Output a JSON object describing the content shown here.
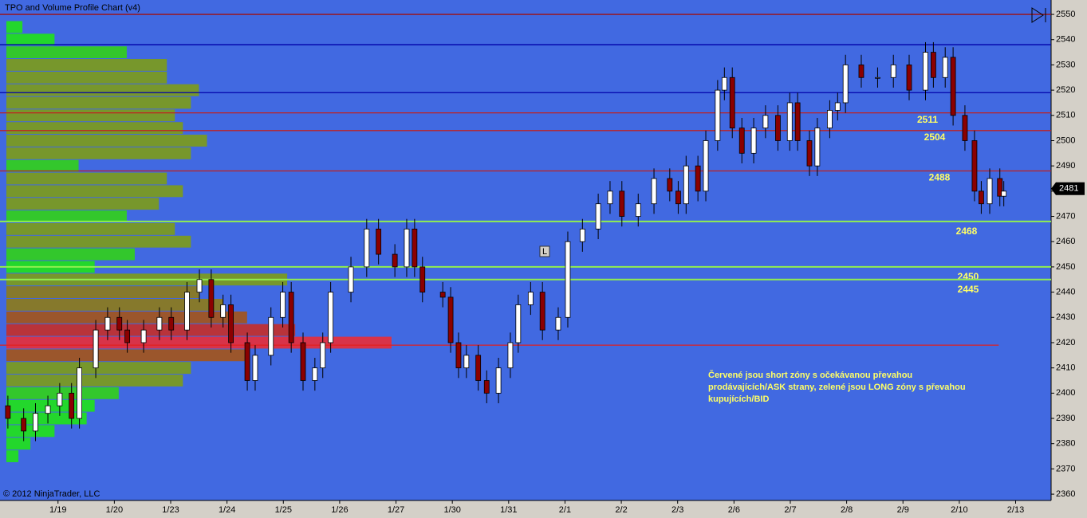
{
  "chart_data": {
    "type": "candlestick",
    "title": "TPO and Volume Profile Chart (v4)",
    "copyright": "© 2012 NinjaTrader, LLC",
    "annotation": [
      "Červené jsou short zóny s očekávanou převahou",
      "prodávajících/ASK strany, zelené jsou LONG zóny s převahou",
      "kupujících/BID"
    ],
    "marker": "L",
    "last_price": 2481,
    "background": "#4169e1",
    "up_color": "#ffffff",
    "down_color": "#8b0000",
    "ylim": [
      2357.5,
      2555.7
    ],
    "yticks": [
      2360,
      2370,
      2380,
      2390,
      2400,
      2410,
      2420,
      2430,
      2440,
      2450,
      2460,
      2470,
      2480,
      2490,
      2500,
      2510,
      2520,
      2530,
      2540,
      2550
    ],
    "xlim": [
      -0.03,
      18.63
    ],
    "xticks": [
      {
        "value": 1,
        "label": "1/19"
      },
      {
        "value": 2,
        "label": "1/20"
      },
      {
        "value": 3,
        "label": "1/23"
      },
      {
        "value": 4,
        "label": "1/24"
      },
      {
        "value": 5,
        "label": "1/25"
      },
      {
        "value": 6,
        "label": "1/26"
      },
      {
        "value": 7,
        "label": "1/27"
      },
      {
        "value": 8,
        "label": "1/30"
      },
      {
        "value": 9,
        "label": "1/31"
      },
      {
        "value": 10,
        "label": "2/1"
      },
      {
        "value": 11,
        "label": "2/2"
      },
      {
        "value": 12,
        "label": "2/3"
      },
      {
        "value": 13,
        "label": "2/6"
      },
      {
        "value": 14,
        "label": "2/7"
      },
      {
        "value": 15,
        "label": "2/8"
      },
      {
        "value": 16,
        "label": "2/9"
      },
      {
        "value": 17,
        "label": "2/10"
      },
      {
        "value": 18,
        "label": "2/13"
      }
    ],
    "x": [
      0.11,
      0.39,
      0.6,
      0.82,
      1.03,
      1.24,
      1.38,
      1.67,
      1.88,
      2.09,
      2.23,
      2.52,
      2.8,
      3.01,
      3.29,
      3.51,
      3.72,
      3.93,
      4.07,
      4.36,
      4.5,
      4.78,
      4.99,
      5.14,
      5.35,
      5.56,
      5.7,
      5.84,
      6.2,
      6.48,
      6.69,
      6.98,
      7.19,
      7.33,
      7.47,
      7.83,
      7.97,
      8.11,
      8.25,
      8.46,
      8.61,
      8.82,
      9.03,
      9.17,
      9.39,
      9.6,
      9.88,
      10.05,
      10.31,
      10.59,
      10.8,
      11.01,
      11.3,
      11.58,
      11.86,
      12.01,
      12.15,
      12.36,
      12.5,
      12.71,
      12.83,
      12.97,
      13.14,
      13.35,
      13.56,
      13.78,
      13.99,
      14.13,
      14.34,
      14.48,
      14.7,
      14.84,
      14.98,
      15.26,
      15.55,
      15.83,
      16.11,
      16.4,
      16.54,
      16.75,
      16.89,
      17.1,
      17.27,
      17.39,
      17.54,
      17.72,
      17.79
    ],
    "open": [
      2395,
      2390,
      2385,
      2392,
      2395,
      2400,
      2390,
      2410,
      2425,
      2430,
      2425,
      2420,
      2425,
      2430,
      2425,
      2440,
      2445,
      2430,
      2435,
      2420,
      2405,
      2415,
      2430,
      2440,
      2420,
      2405,
      2410,
      2420,
      2440,
      2450,
      2465,
      2455,
      2450,
      2465,
      2450,
      2440,
      2438,
      2420,
      2410,
      2415,
      2405,
      2400,
      2410,
      2420,
      2435,
      2440,
      2425,
      2430,
      2460,
      2465,
      2475,
      2480,
      2470,
      2475,
      2485,
      2480,
      2475,
      2490,
      2480,
      2500,
      2520,
      2525,
      2505,
      2495,
      2505,
      2510,
      2500,
      2515,
      2500,
      2490,
      2505,
      2512,
      2515,
      2530,
      2525,
      2525,
      2530,
      2520,
      2535,
      2525,
      2533,
      2510,
      2500,
      2480,
      2475,
      2485,
      2478
    ],
    "high": [
      2399,
      2394,
      2396,
      2399,
      2404,
      2404,
      2414,
      2429,
      2434,
      2434,
      2429,
      2429,
      2434,
      2434,
      2444,
      2449,
      2449,
      2439,
      2439,
      2424,
      2419,
      2434,
      2444,
      2444,
      2424,
      2414,
      2424,
      2444,
      2454,
      2469,
      2469,
      2459,
      2469,
      2469,
      2454,
      2444,
      2442,
      2424,
      2419,
      2419,
      2409,
      2414,
      2424,
      2439,
      2444,
      2444,
      2434,
      2464,
      2469,
      2479,
      2484,
      2484,
      2479,
      2489,
      2489,
      2484,
      2494,
      2494,
      2504,
      2524,
      2529,
      2529,
      2509,
      2509,
      2514,
      2514,
      2519,
      2519,
      2504,
      2509,
      2516,
      2519,
      2534,
      2534,
      2529,
      2534,
      2534,
      2539,
      2539,
      2537,
      2537,
      2514,
      2504,
      2484,
      2489,
      2489,
      2484
    ],
    "low": [
      2386,
      2381,
      2381,
      2388,
      2391,
      2386,
      2386,
      2406,
      2421,
      2421,
      2416,
      2416,
      2421,
      2421,
      2421,
      2436,
      2426,
      2426,
      2416,
      2401,
      2401,
      2411,
      2426,
      2416,
      2401,
      2401,
      2406,
      2416,
      2436,
      2446,
      2451,
      2446,
      2446,
      2446,
      2436,
      2434,
      2416,
      2406,
      2406,
      2401,
      2396,
      2396,
      2406,
      2416,
      2431,
      2421,
      2421,
      2426,
      2456,
      2461,
      2471,
      2466,
      2466,
      2471,
      2476,
      2471,
      2471,
      2476,
      2476,
      2496,
      2516,
      2501,
      2491,
      2491,
      2501,
      2496,
      2496,
      2496,
      2486,
      2486,
      2501,
      2508,
      2511,
      2521,
      2521,
      2521,
      2516,
      2516,
      2521,
      2521,
      2506,
      2496,
      2476,
      2471,
      2471,
      2474,
      2474
    ],
    "close": [
      2390,
      2385,
      2392,
      2395,
      2400,
      2390,
      2410,
      2425,
      2430,
      2425,
      2420,
      2425,
      2430,
      2425,
      2440,
      2445,
      2430,
      2435,
      2420,
      2405,
      2415,
      2430,
      2440,
      2420,
      2405,
      2410,
      2420,
      2440,
      2450,
      2465,
      2455,
      2450,
      2465,
      2450,
      2440,
      2438,
      2420,
      2410,
      2415,
      2405,
      2400,
      2410,
      2420,
      2435,
      2440,
      2425,
      2430,
      2460,
      2465,
      2475,
      2480,
      2470,
      2475,
      2485,
      2480,
      2475,
      2490,
      2480,
      2500,
      2520,
      2525,
      2505,
      2495,
      2505,
      2510,
      2500,
      2515,
      2500,
      2490,
      2505,
      2512,
      2515,
      2530,
      2525,
      2525,
      2530,
      2520,
      2535,
      2525,
      2533,
      2510,
      2500,
      2480,
      2475,
      2485,
      2478,
      2480
    ],
    "profile": {
      "prices": [
        2545,
        2540,
        2535,
        2530,
        2525,
        2520,
        2515,
        2510,
        2505,
        2500,
        2495,
        2490,
        2485,
        2480,
        2475,
        2470,
        2465,
        2460,
        2455,
        2450,
        2445,
        2440,
        2435,
        2430,
        2425,
        2420,
        2415,
        2410,
        2405,
        2400,
        2395,
        2390,
        2385,
        2380,
        2375
      ],
      "volumes": [
        20,
        60,
        150,
        200,
        200,
        240,
        230,
        210,
        220,
        250,
        230,
        90,
        200,
        220,
        190,
        150,
        210,
        230,
        160,
        110,
        350,
        240,
        270,
        300,
        360,
        480,
        300,
        230,
        220,
        140,
        110,
        100,
        60,
        30,
        15
      ],
      "colors": [
        "#22dd22",
        "#22dd22",
        "#33cc22",
        "#7a9a22",
        "#7a9a22",
        "#7a9a22",
        "#7a9a22",
        "#7a9a22",
        "#7a9a22",
        "#7a9a22",
        "#7a9a22",
        "#33cc22",
        "#7a9a22",
        "#7a9a22",
        "#7a9a22",
        "#33cc22",
        "#7a9a22",
        "#7a9a22",
        "#33cc22",
        "#22dd22",
        "#7a9a22",
        "#8a7a22",
        "#8a7a22",
        "#a05522",
        "#c03030",
        "#e03040",
        "#a05522",
        "#7a9a22",
        "#7a9a22",
        "#33cc22",
        "#22dd22",
        "#22dd22",
        "#22dd22",
        "#22dd22",
        "#22dd22"
      ],
      "xlim": [
        0,
        1310
      ]
    },
    "levels": [
      {
        "value": 2550,
        "color": "#a01010"
      },
      {
        "value": 2538,
        "color": "#0000aa"
      },
      {
        "value": 2519,
        "color": "#0000aa"
      },
      {
        "value": 2511,
        "color": "#c02020",
        "label": "2511"
      },
      {
        "value": 2504,
        "color": "#c02020",
        "label": "2504"
      },
      {
        "value": 2488,
        "color": "#c02020",
        "label": "2488"
      },
      {
        "value": 2468,
        "color": "#90ee50",
        "label": "2468"
      },
      {
        "value": 2450,
        "color": "#90ee50",
        "label": "2450"
      },
      {
        "value": 2445,
        "color": "#90ee50",
        "label": "2445"
      },
      {
        "value": 2419,
        "color": "#e02020"
      }
    ]
  }
}
